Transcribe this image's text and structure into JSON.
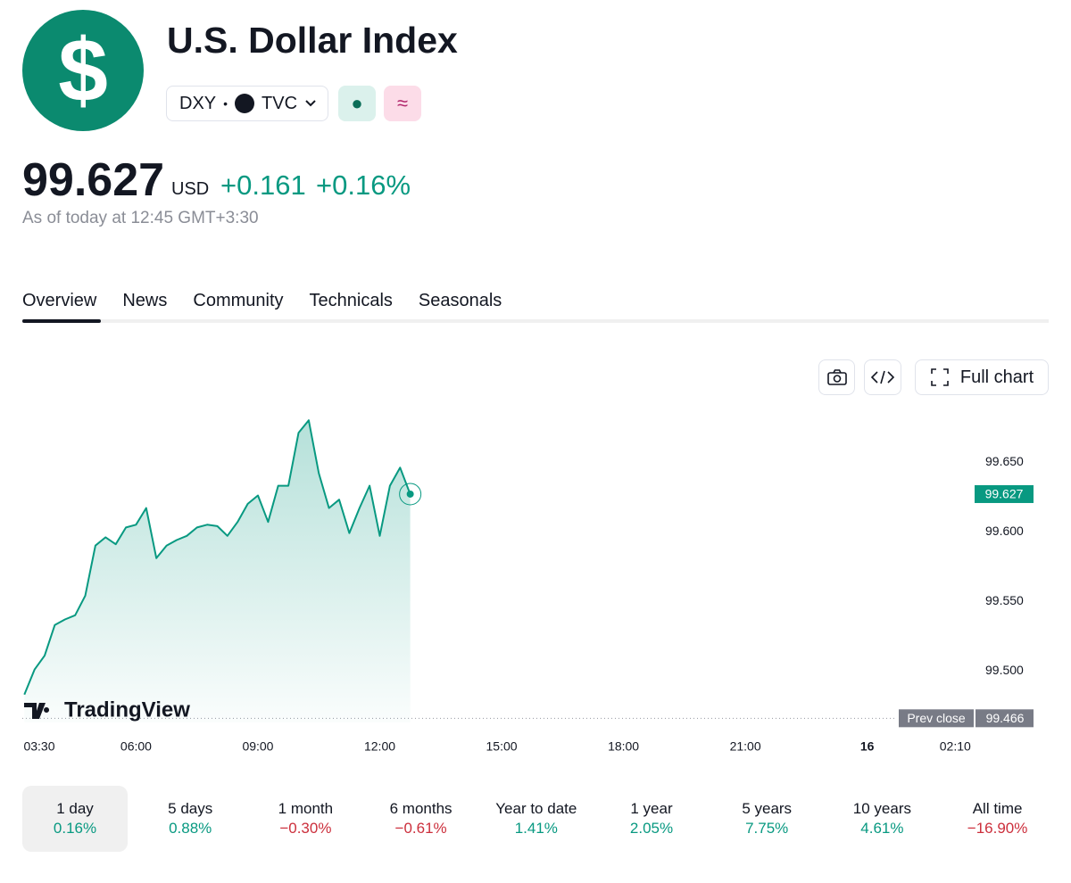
{
  "header": {
    "logo": "$",
    "title": "U.S. Dollar Index",
    "symbol": "DXY",
    "exchange": "TVC",
    "price": "99.627",
    "currency": "USD",
    "change": "+0.161",
    "change_percent": "+0.16%",
    "timestamp": "As of today at 12:45 GMT+3:30"
  },
  "tabs": [
    "Overview",
    "News",
    "Community",
    "Technicals",
    "Seasonals"
  ],
  "toolbar": {
    "full_chart": "Full chart"
  },
  "chart_data": {
    "type": "line",
    "color": "#089981",
    "watermark": "TradingView",
    "x": [
      3.25,
      3.5,
      3.75,
      4,
      4.25,
      4.5,
      4.75,
      5,
      5.25,
      5.5,
      5.75,
      6,
      6.25,
      6.5,
      6.75,
      7,
      7.25,
      7.5,
      7.75,
      8,
      8.25,
      8.5,
      8.75,
      9,
      9.25,
      9.5,
      9.75,
      10,
      10.25,
      10.5,
      10.75,
      11,
      11.25,
      11.5,
      11.75,
      12,
      12.25,
      12.5,
      12.75
    ],
    "values": [
      99.483,
      99.501,
      99.511,
      99.533,
      99.537,
      99.54,
      99.554,
      99.59,
      99.596,
      99.591,
      99.603,
      99.605,
      99.617,
      99.581,
      99.59,
      99.594,
      99.597,
      99.603,
      99.605,
      99.604,
      99.597,
      99.607,
      99.62,
      99.626,
      99.607,
      99.633,
      99.633,
      99.671,
      99.68,
      99.642,
      99.617,
      99.623,
      99.599,
      99.617,
      99.633,
      99.597,
      99.633,
      99.646,
      99.627
    ],
    "xlim": [
      3.2,
      26.6
    ],
    "ylim": [
      99.463,
      99.7
    ],
    "xticks": [
      {
        "value": 3.5,
        "label": "03:30"
      },
      {
        "value": 6,
        "label": "06:00"
      },
      {
        "value": 9,
        "label": "09:00"
      },
      {
        "value": 12,
        "label": "12:00"
      },
      {
        "value": 15,
        "label": "15:00"
      },
      {
        "value": 18,
        "label": "18:00"
      },
      {
        "value": 21,
        "label": "21:00"
      },
      {
        "value": 24,
        "label": "16"
      },
      {
        "value": 26.1667,
        "label": "02:10"
      }
    ],
    "yticks": [
      {
        "value": 99.5,
        "label": "99.500"
      },
      {
        "value": 99.55,
        "label": "99.550"
      },
      {
        "value": 99.6,
        "label": "99.600"
      },
      {
        "value": 99.65,
        "label": "99.650"
      }
    ],
    "prev_close_label": "Prev close",
    "prev_close": 99.466
  },
  "periods": [
    {
      "label": "1 day",
      "change": "0.16%",
      "color": "#089981"
    },
    {
      "label": "5 days",
      "change": "0.88%",
      "color": "#089981"
    },
    {
      "label": "1 month",
      "change": "−0.30%",
      "color": "#cc2f3c"
    },
    {
      "label": "6 months",
      "change": "−0.61%",
      "color": "#cc2f3c"
    },
    {
      "label": "Year to date",
      "change": "1.41%",
      "color": "#089981"
    },
    {
      "label": "1 year",
      "change": "2.05%",
      "color": "#089981"
    },
    {
      "label": "5 years",
      "change": "7.75%",
      "color": "#089981"
    },
    {
      "label": "10 years",
      "change": "4.61%",
      "color": "#089981"
    },
    {
      "label": "All time",
      "change": "−16.90%",
      "color": "#cc2f3c"
    }
  ]
}
